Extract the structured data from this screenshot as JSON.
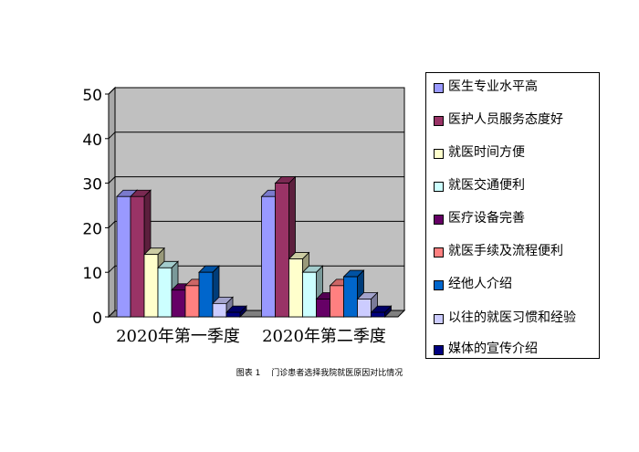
{
  "chart_data": {
    "type": "bar",
    "categories": [
      "2020年第一季度",
      "2020年第二季度"
    ],
    "series": [
      {
        "name": "医生专业水平高",
        "values": [
          27,
          27
        ],
        "color": "#9999ff"
      },
      {
        "name": "医护人员服务态度好",
        "values": [
          27,
          30
        ],
        "color": "#993366"
      },
      {
        "name": "就医时间方便",
        "values": [
          14,
          13
        ],
        "color": "#ffffcc"
      },
      {
        "name": "就医交通便利",
        "values": [
          11,
          10
        ],
        "color": "#ccffff"
      },
      {
        "name": "医疗设备完善",
        "values": [
          6,
          4
        ],
        "color": "#660066"
      },
      {
        "name": "就医手续及流程便利",
        "values": [
          7,
          7
        ],
        "color": "#ff8080"
      },
      {
        "name": "经他人介绍",
        "values": [
          10,
          9
        ],
        "color": "#0066cc"
      },
      {
        "name": "以往的就医习惯和经验",
        "values": [
          3,
          4
        ],
        "color": "#ccccff"
      },
      {
        "name": "媒体的宣传介绍",
        "values": [
          1,
          1
        ],
        "color": "#000080"
      }
    ],
    "ylim": [
      0,
      50
    ],
    "yticks": [
      "0",
      "10",
      "20",
      "30",
      "40",
      "50"
    ],
    "grid": true,
    "legend": "right",
    "plot_background": "#c0c0c0"
  },
  "caption": "图表 1　 门诊患者选择我院就医原因对比情况"
}
